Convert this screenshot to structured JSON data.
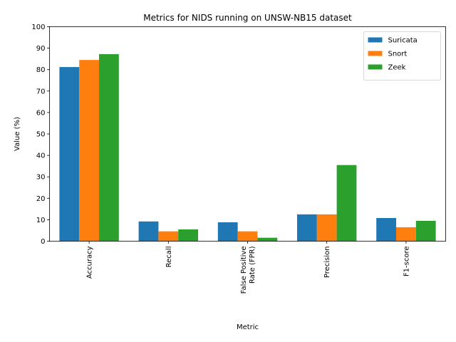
{
  "chart_data": {
    "type": "bar",
    "title": "Metrics for NIDS running on UNSW-NB15 dataset",
    "xlabel": "Metric",
    "ylabel": "Value (%)",
    "categories": [
      [
        "Accuracy"
      ],
      [
        "Recall"
      ],
      [
        "False Positive",
        "Rate (FPR)"
      ],
      [
        "Precision"
      ],
      [
        "F1-score"
      ]
    ],
    "series": [
      {
        "name": "Suricata",
        "color": "#1f77b4",
        "values": [
          81.2,
          9.2,
          8.8,
          12.5,
          10.8
        ]
      },
      {
        "name": "Snort",
        "color": "#ff7f0e",
        "values": [
          84.5,
          4.6,
          4.6,
          12.5,
          6.5
        ]
      },
      {
        "name": "Zeek",
        "color": "#2ca02c",
        "values": [
          87.2,
          5.5,
          1.6,
          35.5,
          9.5
        ]
      }
    ],
    "ylim": [
      0,
      100
    ],
    "yticks": [
      0,
      10,
      20,
      30,
      40,
      50,
      60,
      70,
      80,
      90,
      100
    ],
    "grid": false,
    "legend_position": "top-right"
  }
}
